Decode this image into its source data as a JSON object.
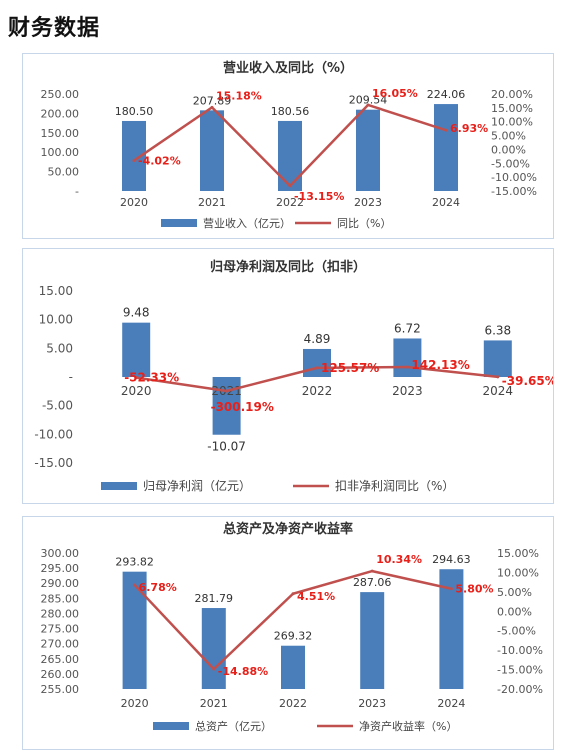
{
  "page": {
    "title": "财务数据"
  },
  "chart_data": [
    {
      "type": "bar",
      "title": "营业收入及同比（%）",
      "categories": [
        "2020",
        "2021",
        "2022",
        "2023",
        "2024"
      ],
      "series": [
        {
          "name": "营业收入（亿元）",
          "kind": "bar",
          "axis": "left",
          "values": [
            180.5,
            207.89,
            180.56,
            209.54,
            224.06
          ],
          "labels": [
            "180.50",
            "207.89",
            "180.56",
            "209.54",
            "224.06"
          ]
        },
        {
          "name": "同比（%）",
          "kind": "line",
          "axis": "right",
          "values": [
            -4.02,
            15.18,
            -13.15,
            16.05,
            6.93
          ],
          "labels": [
            "-4.02%",
            "15.18%",
            "-13.15%",
            "16.05%",
            "6.93%"
          ]
        }
      ],
      "left_axis": {
        "ylim": [
          0,
          250
        ],
        "ticks": [
          0,
          50,
          100,
          150,
          200,
          250
        ],
        "tick_labels": [
          "-",
          "50.00",
          "100.00",
          "150.00",
          "200.00",
          "250.00"
        ]
      },
      "right_axis": {
        "ylim": [
          -15,
          20
        ],
        "ticks": [
          -15,
          -10,
          -5,
          0,
          5,
          10,
          15,
          20
        ],
        "tick_labels": [
          "-15.00%",
          "-10.00%",
          "-5.00%",
          "0.00%",
          "5.00%",
          "10.00%",
          "15.00%",
          "20.00%"
        ]
      },
      "legend_position": "bottom",
      "grid": false,
      "colors": {
        "bar": "#4a7ebb",
        "line": "#c0504d",
        "line_label": "#e8201a"
      }
    },
    {
      "type": "bar",
      "title": "归母净利润及同比（扣非）",
      "categories": [
        "2020",
        "2021",
        "2022",
        "2023",
        "2024"
      ],
      "series": [
        {
          "name": "归母净利润（亿元）",
          "kind": "bar",
          "axis": "left",
          "values": [
            9.48,
            -10.07,
            4.89,
            6.72,
            6.38
          ],
          "labels": [
            "9.48",
            "-10.07",
            "4.89",
            "6.72",
            "6.38"
          ]
        },
        {
          "name": "扣非净利润同比（%）",
          "kind": "line",
          "axis": "hidden",
          "values": [
            -52.33,
            -300.19,
            125.57,
            142.13,
            -39.65
          ],
          "labels": [
            "-52.33%",
            "-300.19%",
            "125.57%",
            "142.13%",
            "-39.65%"
          ]
        }
      ],
      "left_axis": {
        "ylim": [
          -15,
          15
        ],
        "ticks": [
          -15,
          -10,
          -5,
          0,
          5,
          10,
          15
        ],
        "tick_labels": [
          "-15.00",
          "-10.00",
          "-5.00",
          "-",
          "5.00",
          "10.00",
          "15.00"
        ]
      },
      "legend_position": "bottom",
      "grid": false,
      "colors": {
        "bar": "#4a7ebb",
        "line": "#c0504d",
        "line_label": "#e8201a"
      }
    },
    {
      "type": "bar",
      "title": "总资产及净资产收益率",
      "categories": [
        "2020",
        "2021",
        "2022",
        "2023",
        "2024"
      ],
      "series": [
        {
          "name": "总资产（亿元）",
          "kind": "bar",
          "axis": "left",
          "values": [
            293.82,
            281.79,
            269.32,
            287.06,
            294.63
          ],
          "labels": [
            "293.82",
            "281.79",
            "269.32",
            "287.06",
            "294.63"
          ]
        },
        {
          "name": "净资产收益率（%）",
          "kind": "line",
          "axis": "right",
          "values": [
            6.78,
            -14.88,
            4.51,
            10.34,
            5.8
          ],
          "labels": [
            "6.78%",
            "-14.88%",
            "4.51%",
            "10.34%",
            "5.80%"
          ]
        }
      ],
      "left_axis": {
        "ylim": [
          255,
          300
        ],
        "ticks": [
          255,
          260,
          265,
          270,
          275,
          280,
          285,
          290,
          295,
          300
        ],
        "tick_labels": [
          "255.00",
          "260.00",
          "265.00",
          "270.00",
          "275.00",
          "280.00",
          "285.00",
          "290.00",
          "295.00",
          "300.00"
        ]
      },
      "right_axis": {
        "ylim": [
          -20,
          15
        ],
        "ticks": [
          -20,
          -15,
          -10,
          -5,
          0,
          5,
          10,
          15
        ],
        "tick_labels": [
          "-20.00%",
          "-15.00%",
          "-10.00%",
          "-5.00%",
          "0.00%",
          "5.00%",
          "10.00%",
          "15.00%"
        ]
      },
      "legend_position": "bottom",
      "grid": false,
      "colors": {
        "bar": "#4a7ebb",
        "line": "#c0504d",
        "line_label": "#e8201a"
      }
    }
  ]
}
